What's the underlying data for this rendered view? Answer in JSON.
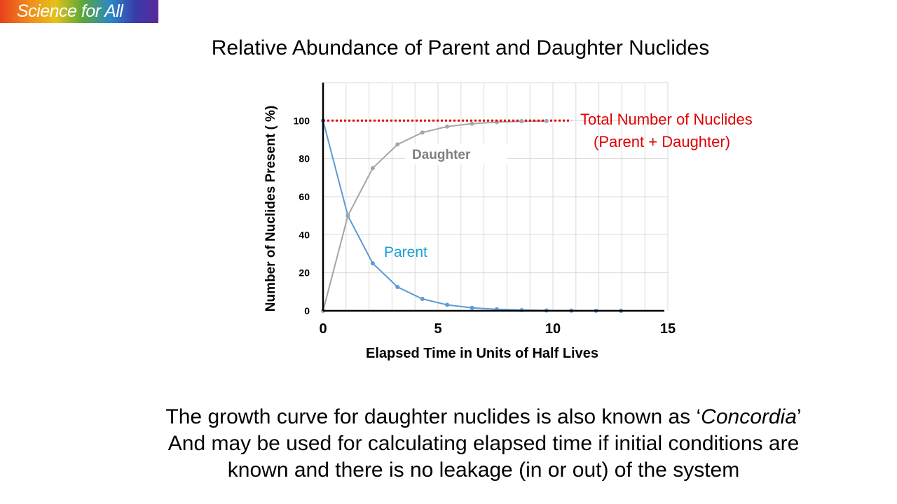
{
  "logo": {
    "text": "Science for All"
  },
  "slide_title": "Relative Abundance of Parent and Daughter Nuclides",
  "caption": {
    "line1_before": "The growth curve for daughter nuclides is also known as ‘",
    "line1_italic": "Concordia",
    "line1_after": "’",
    "line2": "And may be used for calculating elapsed time if initial conditions are",
    "line3": "known and there is no leakage (in or out) of the system"
  },
  "colors": {
    "parent": "#5b9bd5",
    "daughter": "#a5a5a5",
    "total": "#e00000",
    "parent_label": "#1aa0d8",
    "daughter_label": "#7f7f7f",
    "grid": "#d9d9d9",
    "axis": "#000000"
  },
  "chart_data": {
    "type": "line",
    "title": "Relative Abundance of Parent and Daughter Nuclides",
    "xlabel": "Elapsed Time in Units of  Half Lives",
    "ylabel": "Number of Nuclides  Present  ( %)",
    "xlim": [
      0,
      15
    ],
    "ylim": [
      0,
      120
    ],
    "x_ticks": [
      0,
      5,
      10,
      15
    ],
    "y_ticks": [
      0,
      20,
      40,
      60,
      80,
      100
    ],
    "grid": true,
    "series": [
      {
        "name": "Parent",
        "x": [
          0,
          1.08,
          2.16,
          3.24,
          4.32,
          5.4,
          6.48,
          7.56,
          8.64,
          9.72,
          10.8,
          11.88,
          12.96
        ],
        "values": [
          100,
          50,
          25,
          12.5,
          6.25,
          3.13,
          1.56,
          0.78,
          0.39,
          0.2,
          0.1,
          0.05,
          0.02
        ]
      },
      {
        "name": "Daughter",
        "x": [
          0,
          1.08,
          2.16,
          3.24,
          4.32,
          5.4,
          6.48,
          7.56,
          8.64,
          9.72
        ],
        "values": [
          0,
          50,
          75,
          87.5,
          93.75,
          96.88,
          98.44,
          99.22,
          99.61,
          99.8
        ]
      },
      {
        "name": "Total Number of Nuclides (Parent + Daughter)",
        "x": [
          0,
          10.8
        ],
        "values": [
          100,
          100
        ]
      }
    ],
    "annotations": [
      {
        "text": "Daughter",
        "series": "Daughter"
      },
      {
        "text": "Parent",
        "series": "Parent"
      },
      {
        "text": "Total Number of Nuclides",
        "series": "Total"
      },
      {
        "text": "(Parent + Daughter)",
        "series": "Total"
      }
    ]
  }
}
